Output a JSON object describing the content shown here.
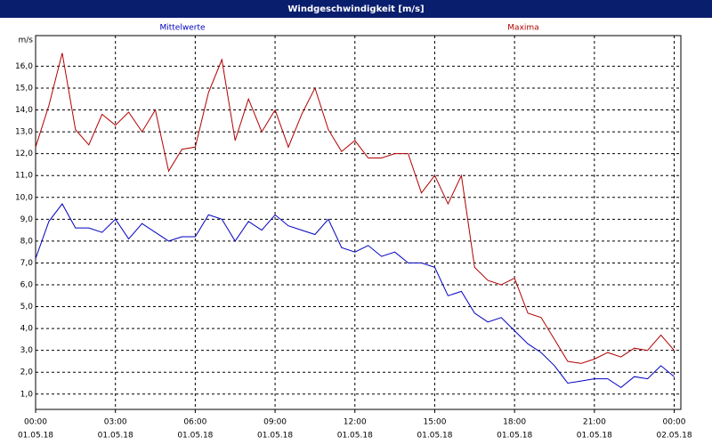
{
  "chart_data": {
    "type": "line",
    "title": "Windgeschwindigkeit [m/s]",
    "y_label": "m/s",
    "x": [
      0,
      0.5,
      1,
      1.5,
      2,
      2.5,
      3,
      3.5,
      4,
      4.5,
      5,
      5.5,
      6,
      6.5,
      7,
      7.5,
      8,
      8.5,
      9,
      9.5,
      10,
      10.5,
      11,
      11.5,
      12,
      12.5,
      13,
      13.5,
      14,
      14.5,
      15,
      15.5,
      16,
      16.5,
      17,
      17.5,
      18,
      18.5,
      19,
      19.5,
      20,
      20.5,
      21,
      21.5,
      22,
      22.5,
      23,
      23.5,
      24
    ],
    "series": [
      {
        "name": "Mittelwerte",
        "color": "#0000c0",
        "values": [
          7.2,
          8.9,
          9.7,
          8.6,
          8.6,
          8.4,
          9.0,
          8.1,
          8.8,
          8.4,
          8.0,
          8.2,
          8.2,
          9.2,
          9.0,
          8.0,
          8.9,
          8.5,
          9.2,
          8.7,
          8.5,
          8.3,
          9.0,
          7.7,
          7.5,
          7.8,
          7.3,
          7.5,
          7.0,
          7.0,
          6.8,
          5.5,
          5.7,
          4.7,
          4.3,
          4.5,
          3.9,
          3.3,
          2.9,
          2.3,
          1.5,
          1.6,
          1.7,
          1.7,
          1.3,
          1.8,
          1.7,
          2.3,
          1.8
        ]
      },
      {
        "name": "Maxima",
        "color": "#b00000",
        "values": [
          12.3,
          14.2,
          16.6,
          13.1,
          12.4,
          13.8,
          13.3,
          13.9,
          13.0,
          14.0,
          11.2,
          12.2,
          12.3,
          14.8,
          16.3,
          12.6,
          14.5,
          13.0,
          14.0,
          12.3,
          13.8,
          15.0,
          13.1,
          12.1,
          12.6,
          11.8,
          11.8,
          12.0,
          12.0,
          10.2,
          11.0,
          9.7,
          11.0,
          6.8,
          6.2,
          6.0,
          6.3,
          4.7,
          4.5,
          3.5,
          2.5,
          2.4,
          2.6,
          2.9,
          2.7,
          3.1,
          3.0,
          3.7,
          3.0
        ]
      }
    ],
    "xlim": [
      0,
      24.25
    ],
    "xticks": [
      {
        "value": 0,
        "label": "00:00"
      },
      {
        "value": 3,
        "label": "03:00"
      },
      {
        "value": 6,
        "label": "06:00"
      },
      {
        "value": 9,
        "label": "09:00"
      },
      {
        "value": 12,
        "label": "12:00"
      },
      {
        "value": 15,
        "label": "15:00"
      },
      {
        "value": 18,
        "label": "18:00"
      },
      {
        "value": 21,
        "label": "21:00"
      },
      {
        "value": 24,
        "label": "00:00"
      }
    ],
    "xtick_sublabels": [
      "01.05.18",
      "01.05.18",
      "01.05.18",
      "01.05.18",
      "01.05.18",
      "01.05.18",
      "01.05.18",
      "01.05.18",
      "02.05.18"
    ],
    "ylim": [
      0.3,
      17.4
    ],
    "yticks": [
      {
        "value": 1,
        "label": "1,0"
      },
      {
        "value": 2,
        "label": "2,0"
      },
      {
        "value": 3,
        "label": "3,0"
      },
      {
        "value": 4,
        "label": "4,0"
      },
      {
        "value": 5,
        "label": "5,0"
      },
      {
        "value": 6,
        "label": "6,0"
      },
      {
        "value": 7,
        "label": "7,0"
      },
      {
        "value": 8,
        "label": "8,0"
      },
      {
        "value": 9,
        "label": "9,0"
      },
      {
        "value": 10,
        "label": "10,0"
      },
      {
        "value": 11,
        "label": "11,0"
      },
      {
        "value": 12,
        "label": "12,0"
      },
      {
        "value": 13,
        "label": "13,0"
      },
      {
        "value": 14,
        "label": "14,0"
      },
      {
        "value": 15,
        "label": "15,0"
      },
      {
        "value": 16,
        "label": "16,0"
      }
    ],
    "grid": true
  }
}
